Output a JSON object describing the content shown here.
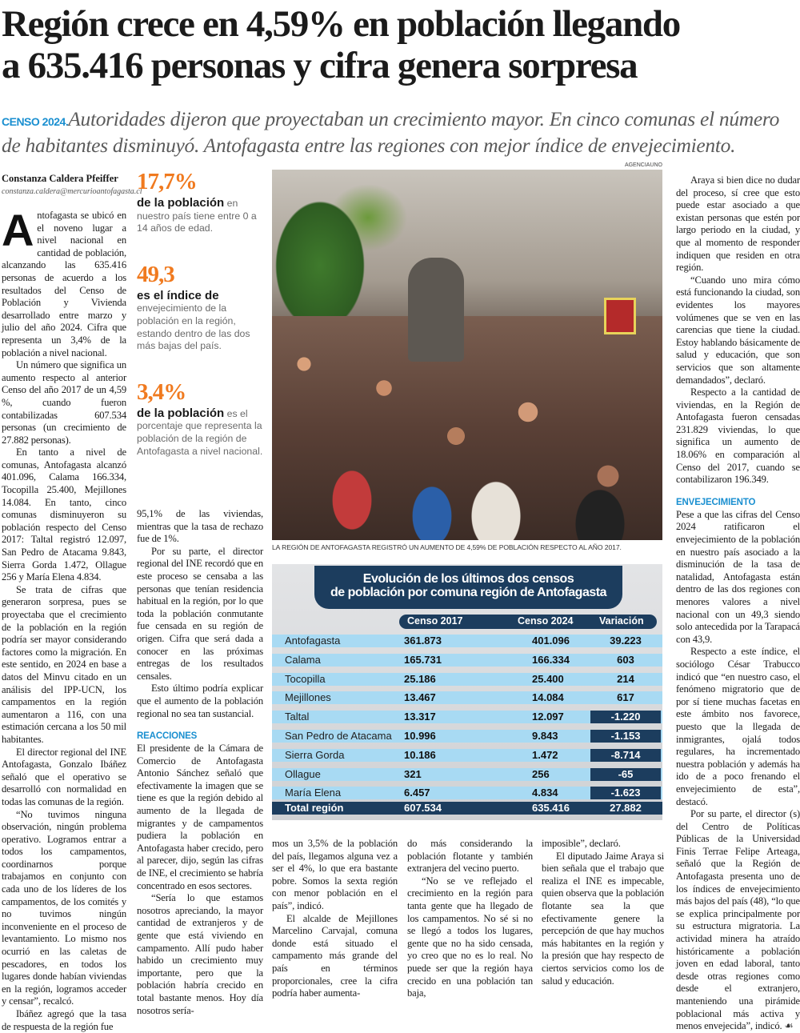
{
  "headline": [
    "Región crece en 4,59% en población llegando",
    "a 635.416 personas y cifra genera sorpresa"
  ],
  "deck": {
    "kicker": "CENSO 2024.",
    "text": "Autoridades dijeron que proyectaban un crecimiento mayor. En cinco comunas el número de habitantes disminuyó. Antofagasta  entre las regiones con mejor índice de envejecimiento."
  },
  "byline": {
    "author": "Constanza Caldera Pfeiffer",
    "email": "constanza.caldera@mercurioantofagasta.cl"
  },
  "stats": [
    {
      "num": "17,7%",
      "lead": "de la población",
      "rest": "en nuestro país tiene entre 0 a 14 años de edad."
    },
    {
      "num": "49,3",
      "lead": "es el índice de",
      "rest": "envejecimiento de la población en la región, estando dentro de las dos más bajas del país."
    },
    {
      "num": "3,4%",
      "lead": "de la población",
      "rest": "es el porcentaje que representa la población de la región de Antofagasta a nivel nacional."
    }
  ],
  "photo": {
    "credit": "AGENCIAUNO",
    "caption": "LA REGIÓN DE ANTOFAGASTA REGISTRÓ UN AUMENTO DE 4,59% DE POBLACIÓN RESPECTO AL AÑO 2017."
  },
  "dropcap": "A",
  "columns": {
    "col1": [
      {
        "t": "p",
        "first": true,
        "text": "ntofagasta se ubicó en el noveno lugar a nivel nacional en cantidad de población, alcanzando las 635.416 personas de acuerdo a los resultados del Censo de Población y Vivienda desarrollado entre marzo y julio del año 2024. Cifra que representa un 3,4% de la población a nivel nacional."
      },
      {
        "t": "p",
        "text": "Un número que significa un aumento respecto al anterior Censo del año 2017 de un 4,59 %, cuando fueron contabilizadas 607.534 personas (un crecimiento de 27.882 personas)."
      },
      {
        "t": "p",
        "text": "En tanto a nivel de comunas, Antofagasta alcanzó 401.096, Calama 166.334, Tocopilla 25.400, Mejillones 14.084. En tanto, cinco comunas disminuyeron su población respecto del Censo 2017: Taltal registró 12.097, San Pedro de Atacama 9.843, Sierra Gorda 1.472, Ollague 256 y María Elena 4.834."
      },
      {
        "t": "p",
        "text": "Se trata de cifras que generaron sorpresa, pues se proyectaba que el crecimiento de la población en la región podría ser mayor considerando factores como la migración. En este sentido, en 2024 en base a datos del Minvu citado en un análisis del IPP-UCN, los campamentos en la región aumentaron a 116, con una estimación cercana a los 50 mil habitantes."
      },
      {
        "t": "p",
        "text": "El director regional del INE Antofagasta, Gonzalo Ibáñez señaló que el operativo se desarrolló con normalidad en todas las comunas de la región."
      },
      {
        "t": "p",
        "text": "“No tuvimos ninguna observación, ningún problema operativo. Logramos entrar a todos los campamentos, coordinarnos porque trabajamos en conjunto con cada uno de los líderes de los campamentos, de los comités y no tuvimos ningún inconveniente en el proceso de levantamiento. Lo mismo nos ocurrió en las caletas de pescadores, en todos los lugares donde habían viviendas en la región, logramos acceder y censar”, recalcó."
      },
      {
        "t": "p",
        "text": "Ibáñez agregó que la tasa de respuesta de la región fue"
      }
    ],
    "col2": [
      {
        "t": "p",
        "noind": true,
        "text": "95,1% de las viviendas, mientras que la tasa de rechazo fue de 1%."
      },
      {
        "t": "p",
        "text": "Por su parte, el director regional del INE recordó que en este proceso se censaba a las personas que tenían residencia habitual en la región, por lo que toda la población conmutante fue censada en su región de origen. Cifra que será dada a conocer en las próximas entregas de los resultados censales."
      },
      {
        "t": "p",
        "text": "Esto último podría explicar que el aumento de la población regional no sea tan sustancial."
      },
      {
        "t": "h",
        "text": "REACCIONES"
      },
      {
        "t": "p",
        "noind": true,
        "text": "El presidente de la Cámara de Comercio de Antofagasta Antonio Sánchez señaló que efectivamente la imagen que se tiene es que la región debido al aumento de la llegada de migrantes y de campamentos pudiera la población en Antofagasta haber crecido, pero al parecer, dijo, según las cifras de INE, el crecimiento se habría concentrado en esos sectores."
      },
      {
        "t": "p",
        "text": "“Sería lo que estamos nosotros apreciando, la mayor cantidad de extranjeros y de gente que está viviendo en campamento. Allí pudo haber habido un crecimiento muy importante, pero que la población habría crecido en total bastante menos. Hoy día nosotros sería-"
      }
    ],
    "col3": [
      {
        "t": "p",
        "noind": true,
        "text": "mos un 3,5% de la población del país, llegamos alguna vez a ser el 4%, lo que era bastante pobre. Somos la sexta región con menor población en el país”, indicó."
      },
      {
        "t": "p",
        "text": "El alcalde de Mejillones Marcelino Carvajal, comuna donde está situado el campamento más grande del país en términos proporcionales, cree la cifra podría haber aumenta-"
      }
    ],
    "col4": [
      {
        "t": "p",
        "noind": true,
        "text": "do más considerando la población flotante y también extranjera del vecino puerto."
      },
      {
        "t": "p",
        "text": "“No se ve reflejado el crecimiento en la región para tanta gente que ha llegado de los campamentos. No sé si no se llegó a todos los lugares, gente que no ha sido censada, yo creo que no es lo real. No puede ser que la región haya crecido en una población tan baja,"
      }
    ],
    "col5": [
      {
        "t": "p",
        "noind": true,
        "text": "imposible”, declaró."
      },
      {
        "t": "p",
        "text": "El diputado Jaime Araya si bien señala que el trabajo que realiza el INE es impecable, quien observa que la población flotante sea la que efectivamente genere la percepción de que hay muchos más habitantes en la región y la presión que hay respecto de ciertos servicios como los de salud y educación."
      }
    ],
    "col6": [
      {
        "t": "p",
        "text": "Araya si bien dice no dudar del proceso, sí cree que esto puede estar asociado a que existan personas que estén por largo periodo en la ciudad, y que al momento de responder indiquen que residen en otra región."
      },
      {
        "t": "p",
        "text": "“Cuando uno mira cómo está funcionando la ciudad, son evidentes los mayores volúmenes que se ven en las carencias que tiene la ciudad. Estoy hablando básicamente de salud y educación, que son servicios que son altamente demandados”, declaró."
      },
      {
        "t": "p",
        "text": "Respecto a la cantidad de viviendas, en la Región de Antofagasta fueron censadas 231.829 viviendas, lo que significa un aumento de 18.06% en comparación al Censo del 2017, cuando se contabilizaron 196.349."
      },
      {
        "t": "h",
        "text": "ENVEJECIMIENTO"
      },
      {
        "t": "p",
        "noind": true,
        "text": "Pese a que las cifras del Censo 2024 ratificaron el envejecimiento de la población en nuestro país asociado a la disminución de la tasa de natalidad, Antofagasta están dentro de las dos regiones con menores valores a nivel nacional con un 49,3 siendo solo antecedida por la Tarapacá con 43,9."
      },
      {
        "t": "p",
        "text": "Respecto a este índice, el sociólogo César Trabucco indicó que “en nuestro caso, el fenómeno migratorio que de por sí tiene muchas facetas en este ámbito nos favorece, puesto que la llegada de inmigrantes, ojalá todos regulares, ha incrementado nuestra población y además ha ido de a poco frenando el envejecimiento de esta”, destacó."
      },
      {
        "t": "p",
        "text": "Por su parte, el director (s) del Centro de Políticas Públicas de la Universidad Finis Terrae Felipe Arteaga, señaló que la Región de Antofagasta presenta uno de los índices de envejecimiento más bajos del país (48), “lo que se explica principalmente por su estructura migratoria. La actividad minera ha atraído históricamente a población joven en edad laboral, tanto desde otras regiones como desde el extranjero, manteniendo una pirámide poblacional más activa y menos envejecida”, indicó."
      }
    ]
  },
  "endmark": "☙",
  "table": {
    "title": [
      "Evolución de los últimos  dos censos",
      "de población por comuna región de Antofagasta"
    ],
    "headers": [
      "Censo 2017",
      "Censo 2024",
      "Variación"
    ],
    "rows": [
      {
        "comuna": "Antofagasta",
        "c2017": "361.873",
        "c2024": "401.096",
        "var": "39.223",
        "negative": false
      },
      {
        "comuna": "Calama",
        "c2017": "165.731",
        "c2024": "166.334",
        "var": "603",
        "negative": false
      },
      {
        "comuna": "Tocopilla",
        "c2017": "25.186",
        "c2024": "25.400",
        "var": "214",
        "negative": false
      },
      {
        "comuna": "Mejillones",
        "c2017": "13.467",
        "c2024": "14.084",
        "var": "617",
        "negative": false
      },
      {
        "comuna": "Taltal",
        "c2017": "13.317",
        "c2024": "12.097",
        "var": "-1.220",
        "negative": true
      },
      {
        "comuna": "San Pedro de Atacama",
        "c2017": "10.996",
        "c2024": "9.843",
        "var": "-1.153",
        "negative": true
      },
      {
        "comuna": "Sierra Gorda",
        "c2017": "10.186",
        "c2024": "1.472",
        "var": "-8.714",
        "negative": true
      },
      {
        "comuna": "Ollague",
        "c2017": "321",
        "c2024": "256",
        "var": "-65",
        "negative": true
      },
      {
        "comuna": "María Elena",
        "c2017": "6.457",
        "c2024": "4.834",
        "var": "-1.623",
        "negative": true
      }
    ],
    "total": {
      "comuna": "Total región",
      "c2017": "607.534",
      "c2024": "635.416",
      "var": "27.882"
    }
  },
  "colors": {
    "accent_orange": "#f07a1f",
    "accent_blue": "#1a8fd0",
    "table_navy": "#1c3d5e",
    "table_row": "#a8daf3"
  }
}
